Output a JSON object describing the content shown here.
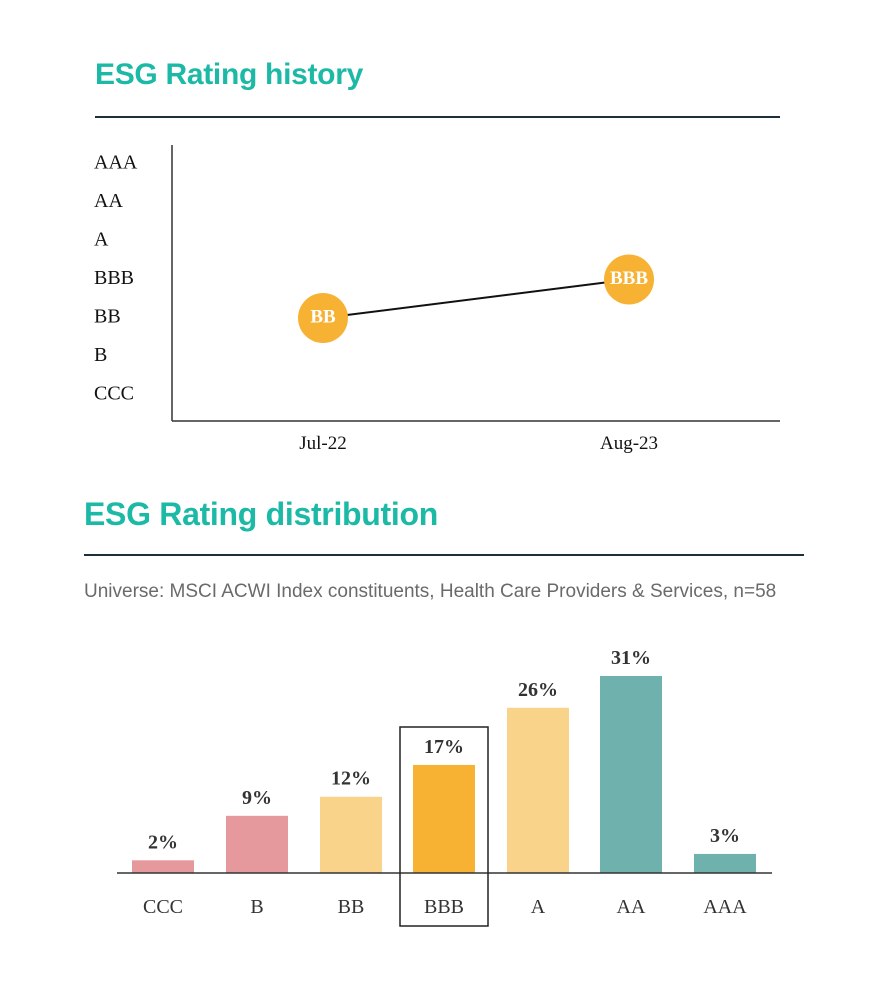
{
  "history": {
    "title": "ESG Rating history",
    "chart_data": {
      "type": "line",
      "title": "ESG Rating history",
      "y_categories": [
        "AAA",
        "AA",
        "A",
        "BBB",
        "BB",
        "B",
        "CCC"
      ],
      "x": [
        "Jul-22",
        "Aug-23"
      ],
      "values": [
        "BB",
        "BBB"
      ],
      "marker_color": "#f7b234",
      "line_color": "#111111"
    }
  },
  "distribution": {
    "title": "ESG Rating distribution",
    "subtitle": "Universe: MSCI ACWI Index constituents, Health Care Providers & Services, n=58",
    "chart_data": {
      "type": "bar",
      "categories": [
        "CCC",
        "B",
        "BB",
        "BBB",
        "A",
        "AA",
        "AAA"
      ],
      "values": [
        2,
        9,
        12,
        17,
        26,
        31,
        3
      ],
      "value_labels": [
        "2%",
        "9%",
        "12%",
        "17%",
        "26%",
        "31%",
        "3%"
      ],
      "colors": [
        "#e6999c",
        "#e6999c",
        "#f9d38a",
        "#f7b234",
        "#f9d38a",
        "#6fb2ad",
        "#6fb2ad"
      ],
      "highlight": "BBB",
      "ylabel": "",
      "ylim": [
        0,
        31
      ]
    }
  }
}
